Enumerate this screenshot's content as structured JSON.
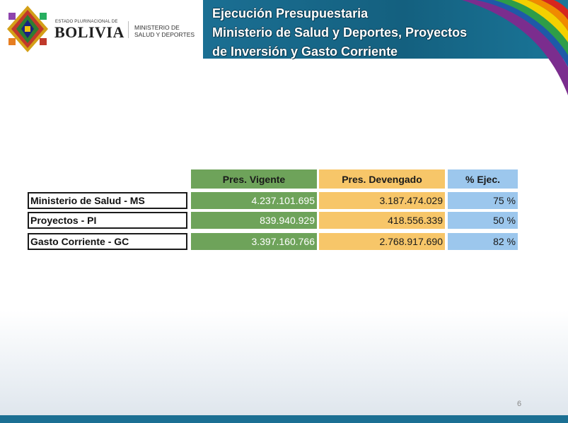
{
  "header": {
    "state_label": "ESTADO PLURINACIONAL DE",
    "country": "BOLIVIA",
    "ministry_line1": "MINISTERIO DE",
    "ministry_line2": "SALUD Y DEPORTES",
    "title_line1": "Ejecución Presupuestaria",
    "title_line2": "Ministerio de Salud y Deportes, Proyectos",
    "title_line3": "de Inversión y Gasto Corriente"
  },
  "table": {
    "headers": [
      "Pres. Vigente",
      "Pres. Devengado",
      "% Ejec."
    ],
    "rows": [
      {
        "label": "Ministerio de Salud - MS",
        "vigente": "4.237.101.695",
        "devengado": "3.187.474.029",
        "ejec": "75 %"
      },
      {
        "label": "Proyectos - PI",
        "vigente": "839.940.929",
        "devengado": "418.556.339",
        "ejec": "50 %"
      },
      {
        "label": "Gasto Corriente - GC",
        "vigente": "3.397.160.766",
        "devengado": "2.768.917.690",
        "ejec": "82 %"
      }
    ]
  },
  "colors": {
    "vigente": "#6ea35a",
    "devengado": "#f7c669",
    "ejec": "#9cc7ed",
    "banner": "#1b6f93"
  },
  "page_number": "6"
}
